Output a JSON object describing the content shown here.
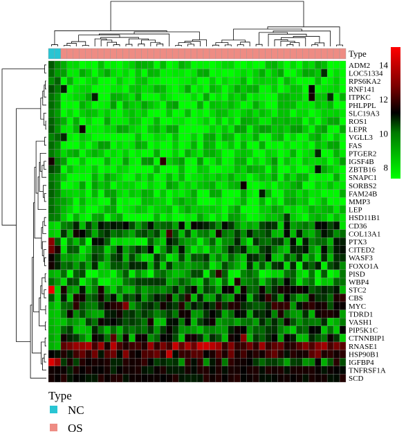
{
  "chart_data": {
    "type": "heatmap",
    "annotation": {
      "label": "Type",
      "groups": [
        {
          "name": "NC",
          "count": 2,
          "color": "#29C5D3"
        },
        {
          "name": "OS",
          "count": 46,
          "color": "#EE8C84"
        }
      ]
    },
    "rows": [
      {
        "gene": "ADM2",
        "base": 7.6,
        "spread": 0.5,
        "nc": [
          9.2,
          8.6
        ]
      },
      {
        "gene": "LOC51334",
        "base": 7.7,
        "spread": 0.5,
        "nc": [
          9.0,
          8.4
        ]
      },
      {
        "gene": "RPS6KA2",
        "base": 7.6,
        "spread": 0.4,
        "nc": [
          8.6,
          9.1
        ]
      },
      {
        "gene": "RNF141",
        "base": 7.7,
        "spread": 0.5,
        "nc": [
          9.3,
          8.8
        ]
      },
      {
        "gene": "ITPKC",
        "base": 7.6,
        "spread": 0.5,
        "nc": [
          8.9,
          8.5
        ]
      },
      {
        "gene": "PHLPPL",
        "base": 7.7,
        "spread": 0.5,
        "nc": [
          9.0,
          8.6
        ]
      },
      {
        "gene": "SLC19A3",
        "base": 7.5,
        "spread": 0.4,
        "nc": [
          8.8,
          8.4
        ]
      },
      {
        "gene": "ROS1",
        "base": 7.6,
        "spread": 0.5,
        "nc": [
          9.1,
          8.6
        ]
      },
      {
        "gene": "LEPR",
        "base": 7.7,
        "spread": 0.5,
        "nc": [
          9.2,
          8.5
        ]
      },
      {
        "gene": "VGLL3",
        "base": 7.6,
        "spread": 0.5,
        "nc": [
          8.7,
          9.0
        ]
      },
      {
        "gene": "FAS",
        "base": 7.7,
        "spread": 0.5,
        "nc": [
          9.0,
          8.6
        ]
      },
      {
        "gene": "PTGER2",
        "base": 7.6,
        "spread": 0.5,
        "nc": [
          8.8,
          8.4
        ]
      },
      {
        "gene": "IGSF4B",
        "base": 7.7,
        "spread": 0.6,
        "nc": [
          10.6,
          8.8
        ]
      },
      {
        "gene": "ZBTB16",
        "base": 7.6,
        "spread": 0.5,
        "nc": [
          9.4,
          9.0
        ]
      },
      {
        "gene": "SNAPC1",
        "base": 7.6,
        "spread": 0.5,
        "nc": [
          8.8,
          8.5
        ]
      },
      {
        "gene": "SORBS2",
        "base": 7.7,
        "spread": 0.5,
        "nc": [
          9.0,
          8.6
        ]
      },
      {
        "gene": "FAM24B",
        "base": 7.7,
        "spread": 0.5,
        "nc": [
          9.1,
          8.7
        ]
      },
      {
        "gene": "MMP3",
        "base": 7.6,
        "spread": 0.6,
        "nc": [
          8.9,
          8.5
        ]
      },
      {
        "gene": "LEP",
        "base": 7.7,
        "spread": 0.5,
        "nc": [
          9.0,
          8.6
        ]
      },
      {
        "gene": "HSD11B1",
        "base": 7.7,
        "spread": 0.5,
        "nc": [
          8.8,
          8.7
        ]
      },
      {
        "gene": "CD36",
        "base": 8.9,
        "spread": 0.9,
        "nc": [
          7.8,
          7.6
        ]
      },
      {
        "gene": "COL13A1",
        "base": 9.3,
        "spread": 1.0,
        "nc": [
          7.9,
          7.7
        ]
      },
      {
        "gene": "PTX3",
        "base": 8.7,
        "spread": 1.0,
        "nc": [
          12.8,
          9.2
        ]
      },
      {
        "gene": "CITED2",
        "base": 8.9,
        "spread": 1.0,
        "nc": [
          12.3,
          10.8
        ]
      },
      {
        "gene": "WASF3",
        "base": 8.6,
        "spread": 0.9,
        "nc": [
          10.4,
          9.6
        ]
      },
      {
        "gene": "FOXO1A",
        "base": 8.6,
        "spread": 0.9,
        "nc": [
          10.6,
          9.8
        ]
      },
      {
        "gene": "PISD",
        "base": 8.4,
        "spread": 0.8,
        "nc": [
          8.2,
          8.0
        ]
      },
      {
        "gene": "WBP4",
        "base": 8.5,
        "spread": 0.8,
        "nc": [
          9.0,
          8.4
        ]
      },
      {
        "gene": "STC2",
        "base": 9.3,
        "spread": 1.1,
        "nc": [
          14.6,
          7.8
        ]
      },
      {
        "gene": "CBS",
        "base": 9.6,
        "spread": 1.2,
        "nc": [
          9.2,
          7.8
        ]
      },
      {
        "gene": "MYC",
        "base": 9.9,
        "spread": 1.1,
        "nc": [
          8.2,
          7.8
        ]
      },
      {
        "gene": "TDRD1",
        "base": 9.4,
        "spread": 1.0,
        "nc": [
          8.0,
          7.9
        ]
      },
      {
        "gene": "VASH1",
        "base": 9.3,
        "spread": 1.0,
        "nc": [
          8.1,
          7.9
        ]
      },
      {
        "gene": "PIP5K1C",
        "base": 9.2,
        "spread": 1.0,
        "nc": [
          8.2,
          8.0
        ]
      },
      {
        "gene": "CTNNBIP1",
        "base": 9.3,
        "spread": 1.0,
        "nc": [
          8.3,
          8.0
        ]
      },
      {
        "gene": "RNASE1",
        "base": 12.4,
        "spread": 1.3,
        "nc": [
          8.2,
          8.0
        ]
      },
      {
        "gene": "HSP90B1",
        "base": 11.3,
        "spread": 1.0,
        "nc": [
          10.2,
          10.0
        ]
      },
      {
        "gene": "IGFBP4",
        "base": 9.7,
        "spread": 1.1,
        "nc": [
          14.4,
          13.2
        ]
      },
      {
        "gene": "TNFRSF1A",
        "base": 10.3,
        "spread": 0.4,
        "nc": [
          10.5,
          10.4
        ]
      },
      {
        "gene": "SCD",
        "base": 10.4,
        "spread": 0.4,
        "nc": [
          10.6,
          10.3
        ]
      }
    ],
    "colorbar": {
      "ticks": [
        8,
        10,
        12,
        14
      ],
      "range": [
        7.3,
        15.0
      ],
      "colors": [
        "#00FF00",
        "#000000",
        "#FF0000"
      ]
    }
  },
  "legend": {
    "title": "Type",
    "items": [
      {
        "label": "NC",
        "color": "#29C5D3"
      },
      {
        "label": "OS",
        "color": "#EE8C84"
      }
    ]
  }
}
